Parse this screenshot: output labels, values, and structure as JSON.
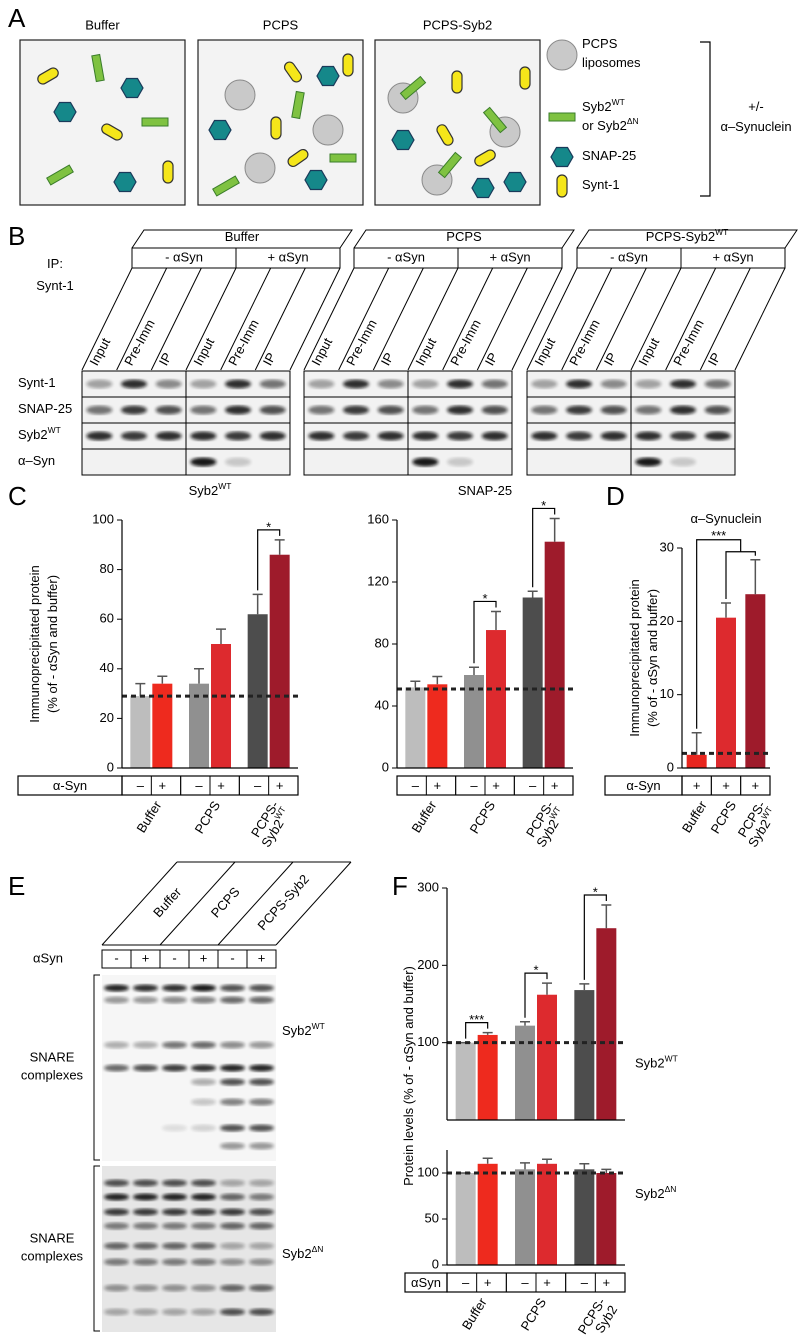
{
  "panel_labels": [
    "A",
    "B",
    "C",
    "D",
    "E",
    "F"
  ],
  "panel_a": {
    "boxes": [
      "Buffer",
      "PCPS",
      "PCPS-Syb2"
    ],
    "legend": [
      {
        "lines": [
          "PCPS",
          "liposomes"
        ]
      },
      {
        "lines": [
          {
            "text": "Syb2",
            "sup": "WT"
          },
          {
            "text": "or Syb2",
            "sup": "ΔN"
          }
        ]
      },
      {
        "lines": [
          "SNAP-25"
        ]
      },
      {
        "lines": [
          "Synt-1"
        ]
      }
    ],
    "bracket": {
      "lines": [
        "+/-",
        "α–Synuclein"
      ]
    }
  },
  "panel_b": {
    "ip_label": {
      "lines": [
        "IP:",
        "Synt-1"
      ]
    },
    "groups": [
      {
        "title": "Buffer",
        "conditions": [
          "- αSyn",
          "+ αSyn"
        ],
        "lanes": [
          "Input",
          "Pre-Imm",
          "IP",
          "Input",
          "Pre-Imm",
          "IP"
        ]
      },
      {
        "title": "PCPS",
        "conditions": [
          "- αSyn",
          "+ αSyn"
        ],
        "lanes": [
          "Input",
          "Pre-Imm",
          "IP",
          "Input",
          "Pre-Imm",
          "IP"
        ]
      },
      {
        "title": {
          "text": "PCPS-Syb2",
          "sup": "WT"
        },
        "conditions": [
          "- αSyn",
          "+ αSyn"
        ],
        "lanes": [
          "Input",
          "Pre-Imm",
          "IP",
          "Input",
          "Pre-Imm",
          "IP"
        ]
      }
    ],
    "rows": [
      "Synt-1",
      "SNAP-25",
      {
        "text": "Syb2",
        "sup": "WT"
      },
      "α–Syn"
    ]
  },
  "panel_e": {
    "headers": [
      "Buffer",
      "PCPS",
      "PCPS-Syb2"
    ],
    "row_label": "αSyn",
    "signs": [
      "-",
      "+",
      "-",
      "+",
      "-",
      "+"
    ],
    "blots": [
      {
        "label": {
          "lines": [
            "SNARE",
            "complexes"
          ]
        },
        "band": {
          "text": "Syb2",
          "sup": "WT"
        }
      },
      {
        "label": {
          "lines": [
            "SNARE",
            "complexes"
          ]
        },
        "band": {
          "text": "Syb2",
          "sup": "ΔN"
        }
      }
    ]
  },
  "chart_data": [
    {
      "type": "bar",
      "title": {
        "text": "Syb2",
        "sup": "WT"
      },
      "ylabel": {
        "lines": [
          "Immunoprecipitated protein",
          "(% of - αSyn and buffer)"
        ]
      },
      "values": [
        29,
        34,
        34,
        50,
        62,
        86
      ],
      "errors": [
        5,
        3,
        6,
        6,
        8,
        6
      ],
      "colors": [
        "#bdbdbd",
        "#ee2a1e",
        "#909090",
        "#dd2a2e",
        "#4d4d4d",
        "#9e1b2b"
      ],
      "ylim": [
        0,
        100
      ],
      "yticks": [
        0,
        20,
        40,
        60,
        80,
        100
      ],
      "baseline": 29,
      "annotations": [
        "*"
      ],
      "row_label": "α-Syn",
      "signs": [
        "–",
        "+",
        "–",
        "+",
        "–",
        "+"
      ],
      "groups": [
        {
          "lines": [
            "Buffer"
          ]
        },
        {
          "lines": [
            "PCPS"
          ]
        },
        {
          "lines": [
            "PCPS-",
            "Syb2"
          ],
          "sup": "WT"
        }
      ]
    },
    {
      "type": "bar",
      "title": "SNAP-25",
      "values": [
        52,
        54,
        60,
        89,
        110,
        146
      ],
      "errors": [
        4,
        5,
        5,
        12,
        4,
        15
      ],
      "colors": [
        "#bdbdbd",
        "#ee2a1e",
        "#909090",
        "#dd2a2e",
        "#4d4d4d",
        "#9e1b2b"
      ],
      "ylim": [
        0,
        160
      ],
      "yticks": [
        0,
        40,
        80,
        120,
        160
      ],
      "baseline": 51,
      "annotations": [
        "*",
        "*"
      ],
      "signs": [
        "–",
        "+",
        "–",
        "+",
        "–",
        "+"
      ],
      "groups": [
        {
          "lines": [
            "Buffer"
          ]
        },
        {
          "lines": [
            "PCPS"
          ]
        },
        {
          "lines": [
            "PCPS-",
            "Syb2"
          ],
          "sup": "WT"
        }
      ]
    },
    {
      "type": "bar",
      "title": "α–Synuclein",
      "ylabel": {
        "lines": [
          "Immunoprecipitated protein",
          "(% of - αSyn and buffer)"
        ]
      },
      "values": [
        1.8,
        20.5,
        23.7
      ],
      "errors": [
        3,
        2,
        4.7
      ],
      "colors": [
        "#e8261e",
        "#dd2a2e",
        "#9e1b2b"
      ],
      "ylim": [
        0,
        30
      ],
      "yticks": [
        0,
        10,
        20,
        30
      ],
      "baseline": 2,
      "annotations": [
        "***"
      ],
      "row_label": "α-Syn",
      "signs": [
        "+",
        "+",
        "+"
      ],
      "groups": [
        {
          "lines": [
            "Buffer"
          ]
        },
        {
          "lines": [
            "PCPS"
          ]
        },
        {
          "lines": [
            "PCPS-",
            "Syb2"
          ],
          "sup": "WT"
        }
      ]
    },
    {
      "type": "bar",
      "ylabel": {
        "lines": [
          "Protein levels (% of - αSyn and buffer)"
        ]
      },
      "series_label": {
        "text": "Syb2",
        "sup": "WT"
      },
      "values": [
        100,
        110,
        122,
        162,
        168,
        248
      ],
      "errors": [
        0,
        3,
        5,
        15,
        8,
        30
      ],
      "colors": [
        "#bdbdbd",
        "#ee2a1e",
        "#909090",
        "#dd2a2e",
        "#4d4d4d",
        "#9e1b2b"
      ],
      "ylim": [
        0,
        300
      ],
      "yticks": [
        100,
        200,
        300
      ],
      "baseline": 100,
      "annotations": [
        "***",
        "*",
        "*"
      ]
    },
    {
      "type": "bar",
      "series_label": {
        "text": "Syb2",
        "sup": "ΔN"
      },
      "values": [
        100,
        110,
        104,
        110,
        104,
        100
      ],
      "errors": [
        0,
        6,
        7,
        5,
        6,
        4
      ],
      "colors": [
        "#bdbdbd",
        "#ee2a1e",
        "#909090",
        "#dd2a2e",
        "#4d4d4d",
        "#9e1b2b"
      ],
      "ylim": [
        0,
        125
      ],
      "yticks": [
        0,
        50,
        100
      ],
      "baseline": 100,
      "row_label": "αSyn",
      "signs": [
        "–",
        "+",
        "–",
        "+",
        "–",
        "+"
      ],
      "groups": [
        {
          "lines": [
            "Buffer"
          ]
        },
        {
          "lines": [
            "PCPS"
          ]
        },
        {
          "lines": [
            "PCPS-",
            "Syb2"
          ]
        }
      ]
    }
  ]
}
